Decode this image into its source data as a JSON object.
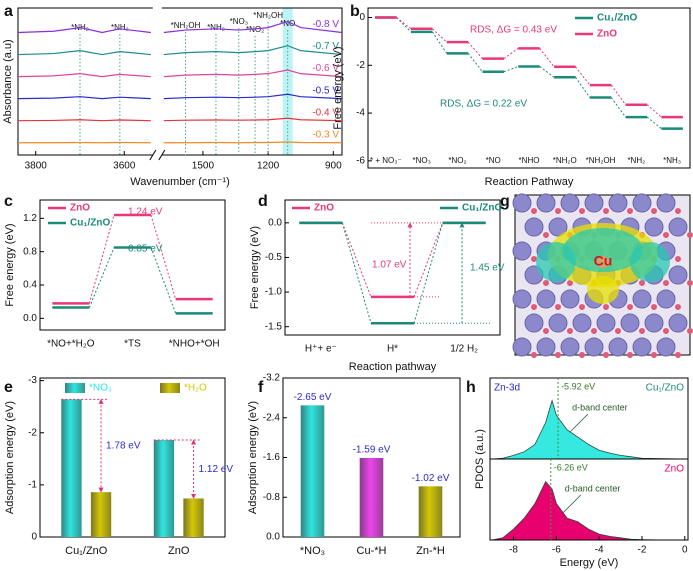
{
  "chart_data": [
    {
      "panel": "a",
      "type": "spectra",
      "ylabel": "Absorbance (a.u)",
      "xlabel": "Wavenumber (cm⁻¹)",
      "x": [
        3840,
        3760,
        3700,
        3650,
        3610,
        3540,
        1680,
        1580,
        1440,
        1335,
        1260,
        1200,
        1110,
        1050,
        860
      ],
      "xlim": [
        3840,
        860
      ],
      "xbreak": [
        3540,
        1680
      ],
      "xticks": [
        3800,
        3600,
        1500,
        1200,
        900
      ],
      "ylim": [
        0,
        6
      ],
      "annotations": [
        {
          "text": "*NH₂",
          "x": 3700
        },
        {
          "text": "*NH₂",
          "x": 3610
        },
        {
          "text": "*NH₂OH",
          "x": 1580
        },
        {
          "text": "*NH₂",
          "x": 1440
        },
        {
          "text": "*NO₃",
          "x": 1335
        },
        {
          "text": "*NO₂",
          "x": 1260
        },
        {
          "text": "*NH₂OH",
          "x": 1200
        },
        {
          "text": "*NO",
          "x": 1110
        }
      ],
      "series": [
        {
          "name": "-0.8 V",
          "color": "#8b2be2",
          "values": [
            5.0,
            5.05,
            5.2,
            5.0,
            5.15,
            5.0,
            5.0,
            5.1,
            5.15,
            5.1,
            5.15,
            5.2,
            5.45,
            5.2,
            5.0
          ]
        },
        {
          "name": "-0.7 V",
          "color": "#1b8c8c",
          "values": [
            4.1,
            4.14,
            4.26,
            4.1,
            4.22,
            4.1,
            4.1,
            4.18,
            4.22,
            4.18,
            4.22,
            4.26,
            4.46,
            4.26,
            4.1
          ]
        },
        {
          "name": "-0.6 V",
          "color": "#e0449c",
          "values": [
            3.2,
            3.23,
            3.32,
            3.2,
            3.29,
            3.2,
            3.2,
            3.26,
            3.29,
            3.26,
            3.29,
            3.32,
            3.47,
            3.32,
            3.2
          ]
        },
        {
          "name": "-0.5 V",
          "color": "#2a2ad0",
          "values": [
            2.3,
            2.32,
            2.38,
            2.3,
            2.36,
            2.3,
            2.3,
            2.34,
            2.36,
            2.34,
            2.36,
            2.38,
            2.48,
            2.38,
            2.3
          ]
        },
        {
          "name": "-0.4 V",
          "color": "#e8323c",
          "values": [
            1.4,
            1.41,
            1.44,
            1.4,
            1.43,
            1.4,
            1.4,
            1.42,
            1.43,
            1.42,
            1.43,
            1.44,
            1.5,
            1.44,
            1.4
          ]
        },
        {
          "name": "-0.3 V",
          "color": "#f08a24",
          "values": [
            0.5,
            0.5,
            0.51,
            0.5,
            0.51,
            0.5,
            0.5,
            0.5,
            0.51,
            0.5,
            0.51,
            0.51,
            0.53,
            0.51,
            0.5
          ]
        }
      ]
    },
    {
      "panel": "b",
      "type": "energy",
      "ylabel": "Free energy (eV)",
      "xlabel": "Reaction Pathway",
      "categories": [
        "* + NO₃⁻",
        "*NO₃",
        "*NO₂",
        "*NO",
        "*NHO",
        "*NH₂O",
        "*NH₂OH",
        "*NH₂",
        "*NH₃"
      ],
      "ylim": [
        -6.3,
        0.4
      ],
      "yticks": [
        -6,
        -4,
        -2,
        0
      ],
      "series": [
        {
          "name": "Cu₁/ZnO",
          "color": "#1a8a7a",
          "values": [
            0,
            -0.6,
            -1.5,
            -2.27,
            -2.05,
            -2.5,
            -3.35,
            -4.17,
            -4.65
          ]
        },
        {
          "name": "ZnO",
          "color": "#e8387a",
          "values": [
            0,
            -0.47,
            -1.03,
            -1.72,
            -1.29,
            -2.06,
            -2.83,
            -3.65,
            -4.17
          ]
        }
      ],
      "annotations": [
        "RDS, ΔG = 0.43 eV",
        "RDS, ΔG = 0.22 eV"
      ]
    },
    {
      "panel": "c",
      "type": "energy",
      "ylabel": "Free energy (eV)",
      "categories": [
        "*NO+*H₂O",
        "*TS",
        "*NHO+*OH"
      ],
      "ylim": [
        -0.14,
        1.42
      ],
      "yticks": [
        {
          "value": 0,
          "label": "0.0"
        },
        0.4,
        0.8,
        1.2
      ],
      "series": [
        {
          "name": "ZnO",
          "color": "#e8387a",
          "values": [
            0.18,
            1.24,
            0.23
          ]
        },
        {
          "name": "Cu₁/ZnO",
          "color": "#1a8a7a",
          "values": [
            0.13,
            0.85,
            0.06
          ]
        }
      ],
      "annotations": [
        "1.24 eV",
        "0.85 eV"
      ]
    },
    {
      "panel": "d",
      "type": "energy",
      "ylabel": "Free energy (eV)",
      "xlabel": "Reaction pathway",
      "categories": [
        "H⁺+ e⁻",
        "H*",
        "1/2 H₂"
      ],
      "ylim": [
        -1.62,
        0.33
      ],
      "yticks": [
        {
          "value": 0,
          "label": "0.0"
        },
        -0.5,
        {
          "value": -1,
          "label": "-1.0"
        },
        -1.5
      ],
      "series": [
        {
          "name": "ZnO",
          "color": "#e8387a",
          "values": [
            0,
            -1.07,
            0
          ]
        },
        {
          "name": "Cu₁/ZnO",
          "color": "#1a8a7a",
          "values": [
            0,
            -1.45,
            0
          ]
        }
      ],
      "annotations": [
        "1.07 eV",
        "1.45 eV"
      ]
    },
    {
      "panel": "g",
      "type": "image",
      "label": "Cu"
    },
    {
      "panel": "e",
      "type": "bar",
      "ylabel": "Adsorption energy (eV)",
      "categories": [
        "Cu₁/ZnO",
        "ZnO"
      ],
      "ylim": [
        0,
        -3.05
      ],
      "yticks": [
        0,
        -1,
        -2,
        -3
      ],
      "series": [
        {
          "name": "*NO₃",
          "color": "#2ee6e0",
          "values": [
            -2.64,
            -1.86
          ]
        },
        {
          "name": "*H₂O",
          "color": "#d4c800",
          "values": [
            -0.86,
            -0.74
          ]
        }
      ],
      "annotations": [
        "1.78 eV",
        "1.12 eV"
      ]
    },
    {
      "panel": "f",
      "type": "bar",
      "ylabel": "Adsorption energy (eV)",
      "categories": [
        "*NO₃",
        "Cu-*H",
        "Zn-*H"
      ],
      "values": [
        -2.65,
        -1.59,
        -1.02
      ],
      "value_labels": [
        "-2.65 eV",
        "-1.59 eV",
        "-1.02 eV"
      ],
      "colors": [
        "#2ee6e0",
        "#ee44ee",
        "#d4c800"
      ],
      "ylim": [
        0,
        -3.2
      ],
      "yticks": [
        {
          "value": 0,
          "label": "0.0"
        },
        -0.8,
        -1.6,
        -2.4,
        -3.2
      ]
    },
    {
      "panel": "h",
      "type": "pdos",
      "title": "Zn-3d",
      "annotation": "d-band center",
      "xlabel": "Energy (eV)",
      "ylabel": "PDOS (a.u.)",
      "x": [
        -9,
        -8.5,
        -8,
        -7.5,
        -7,
        -6.5,
        -6.2,
        -6,
        -5.5,
        -5,
        -4.5,
        -4,
        -3.5,
        -3,
        -2.5,
        -2,
        -1,
        0
      ],
      "xlim": [
        -9.1,
        0.15
      ],
      "xticks": [
        -8,
        -6,
        -4,
        -2,
        0
      ],
      "ylim": [
        0,
        10
      ],
      "series": [
        {
          "name": "Cu₁/ZnO",
          "color": "#35e8e0",
          "values": [
            0,
            0.1,
            0.5,
            1,
            2,
            5,
            8,
            6,
            4,
            3,
            2,
            1.2,
            0.8,
            0.5,
            0.3,
            0.1,
            0.05,
            0
          ],
          "dband": -5.92,
          "dband_label": "-5.92 eV"
        },
        {
          "name": "ZnO",
          "color": "#e8006e",
          "values": [
            0,
            0.3,
            1.5,
            3,
            5,
            8,
            7,
            5,
            3,
            2.5,
            1.5,
            0.8,
            0.5,
            0.3,
            0.1,
            0.05,
            0,
            0
          ],
          "dband": -6.26,
          "dband_label": "-6.26 eV"
        }
      ]
    }
  ]
}
